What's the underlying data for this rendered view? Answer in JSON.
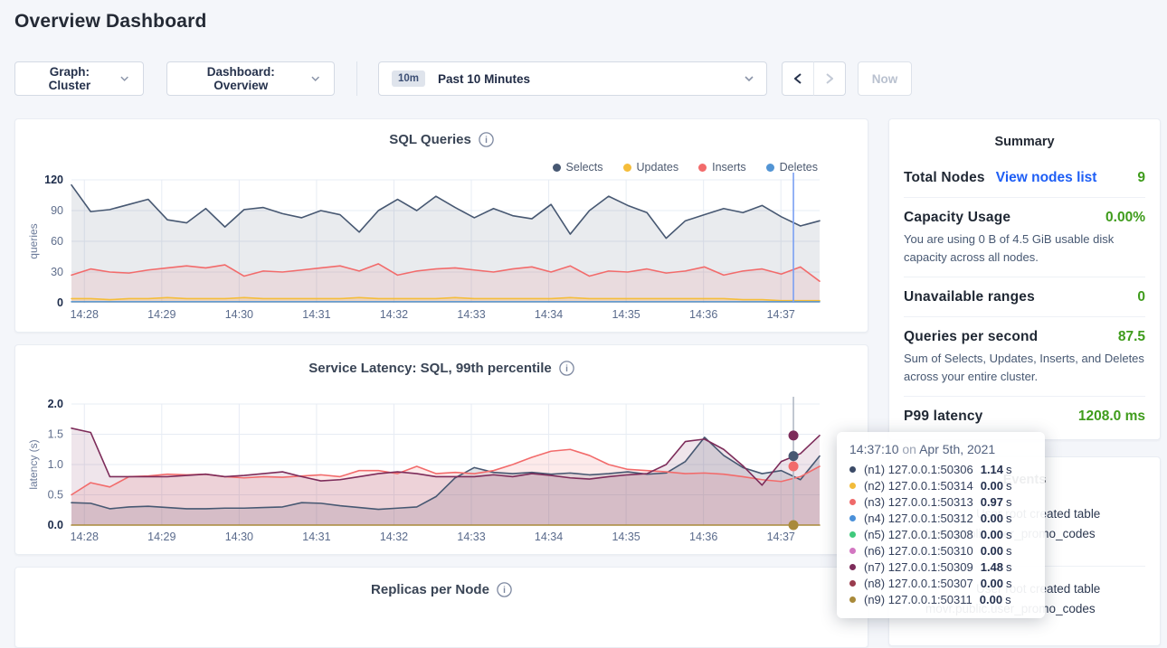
{
  "header": {
    "title": "Overview Dashboard"
  },
  "controls": {
    "graph_label": "Graph: Cluster",
    "dashboard_label": "Dashboard: Overview",
    "time_badge": "10m",
    "time_label": "Past 10 Minutes",
    "now_label": "Now"
  },
  "colors": {
    "accent_green": "#3f9c1c",
    "link_blue": "#1e5ef5",
    "selects_navy": "#475872",
    "updates_yellow": "#f5bd3a",
    "inserts_red": "#f26b6b",
    "deletes_blue": "#5294d4",
    "purple_n7": "#7d2c5a",
    "olive_n9": "#a98a3a"
  },
  "chart_data": [
    {
      "type": "line",
      "title": "SQL Queries",
      "ylabel": "queries",
      "ylim": [
        0,
        120
      ],
      "yticks": [
        {
          "v": 0,
          "label": "0"
        },
        {
          "v": 30,
          "label": "30"
        },
        {
          "v": 60,
          "label": "60"
        },
        {
          "v": 90,
          "label": "90"
        },
        {
          "v": 120,
          "label": "120"
        }
      ],
      "x_ticks": [
        "14:28",
        "14:29",
        "14:30",
        "14:31",
        "14:32",
        "14:33",
        "14:34",
        "14:35",
        "14:36",
        "14:37"
      ],
      "legend_position": "top-right",
      "grid": true,
      "hover": {
        "frac": 0.965,
        "line_color": "#7ba0f2"
      },
      "series": [
        {
          "name": "Selects",
          "color": "#475872",
          "fill": "rgba(71,88,114,0.12)",
          "values": [
            115,
            89,
            91,
            96,
            101,
            81,
            78,
            92,
            74,
            91,
            93,
            87,
            83,
            90,
            86,
            69,
            90,
            101,
            90,
            104,
            93,
            83,
            92,
            85,
            82,
            96,
            67,
            90,
            104,
            95,
            88,
            63,
            80,
            86,
            92,
            88,
            95,
            84,
            75,
            80
          ]
        },
        {
          "name": "Updates",
          "color": "#f5bd3a",
          "fill": "rgba(245,189,58,0.18)",
          "values": [
            4,
            4,
            3,
            4,
            4,
            5,
            4,
            4,
            4,
            5,
            4,
            4,
            4,
            4,
            4,
            5,
            4,
            4,
            4,
            4,
            5,
            4,
            4,
            4,
            4,
            4,
            5,
            4,
            4,
            4,
            4,
            4,
            4,
            4,
            4,
            3,
            3,
            2,
            2,
            2
          ]
        },
        {
          "name": "Inserts",
          "color": "#f26b6b",
          "fill": "rgba(242,107,107,0.12)",
          "values": [
            27,
            33,
            30,
            29,
            32,
            34,
            36,
            34,
            37,
            26,
            31,
            30,
            32,
            34,
            36,
            31,
            38,
            27,
            31,
            33,
            34,
            32,
            30,
            33,
            35,
            30,
            36,
            26,
            31,
            30,
            33,
            29,
            31,
            35,
            27,
            31,
            33,
            28,
            35,
            21
          ]
        },
        {
          "name": "Deletes",
          "color": "#5294d4",
          "fill": "none",
          "values": [
            1,
            1,
            1,
            1,
            1,
            1,
            1,
            1,
            1,
            1,
            1,
            1,
            1,
            1,
            1,
            1,
            1,
            1,
            1,
            1,
            1,
            1,
            1,
            1,
            1,
            1,
            1,
            1,
            1,
            1,
            1,
            1,
            1,
            1,
            1,
            1,
            1,
            1,
            1,
            1
          ]
        }
      ]
    },
    {
      "type": "line",
      "title": "Service Latency: SQL, 99th percentile",
      "ylabel": "latency (s)",
      "ylim": [
        0,
        2
      ],
      "yticks": [
        {
          "v": 0,
          "label": "0.0"
        },
        {
          "v": 0.5,
          "label": "0.5"
        },
        {
          "v": 1,
          "label": "1.0"
        },
        {
          "v": 1.5,
          "label": "1.5"
        },
        {
          "v": 2,
          "label": "2.0"
        }
      ],
      "x_ticks": [
        "14:28",
        "14:29",
        "14:30",
        "14:31",
        "14:32",
        "14:33",
        "14:34",
        "14:35",
        "14:36",
        "14:37"
      ],
      "grid": true,
      "hover": {
        "frac": 0.965,
        "line_color": "#b3bac6",
        "dots": [
          {
            "color": "#475872",
            "v": 1.14
          },
          {
            "color": "#f26b6b",
            "v": 0.97
          },
          {
            "color": "#7d2c5a",
            "v": 1.48
          },
          {
            "color": "#a98a3a",
            "v": 0
          }
        ]
      },
      "series": [
        {
          "name": "(n1) 127.0.0.1:50306",
          "color": "#475872",
          "fill": "rgba(71,88,114,0.16)",
          "values": [
            0.37,
            0.36,
            0.27,
            0.3,
            0.31,
            0.29,
            0.27,
            0.27,
            0.28,
            0.28,
            0.29,
            0.3,
            0.37,
            0.36,
            0.32,
            0.29,
            0.26,
            0.28,
            0.3,
            0.47,
            0.78,
            0.95,
            0.87,
            0.85,
            0.87,
            0.84,
            0.86,
            0.83,
            0.85,
            0.88,
            0.84,
            0.86,
            1.05,
            1.45,
            1.15,
            0.95,
            0.85,
            0.9,
            0.75,
            1.14
          ]
        },
        {
          "name": "(n3) 127.0.0.1:50313",
          "color": "#f26b6b",
          "fill": "rgba(242,107,107,0.14)",
          "values": [
            0.5,
            0.7,
            0.63,
            0.8,
            0.81,
            0.84,
            0.83,
            0.84,
            0.8,
            0.78,
            0.8,
            0.79,
            0.81,
            0.83,
            0.8,
            0.9,
            0.9,
            0.85,
            0.97,
            0.85,
            0.87,
            0.85,
            0.9,
            1.0,
            1.12,
            1.22,
            1.25,
            1.15,
            1.0,
            0.92,
            0.9,
            0.88,
            0.85,
            0.86,
            0.84,
            0.8,
            0.75,
            0.72,
            0.8,
            0.97
          ]
        },
        {
          "name": "(n7) 127.0.0.1:50309",
          "color": "#7d2c5a",
          "fill": "rgba(125,44,90,0.12)",
          "values": [
            1.6,
            1.53,
            0.8,
            0.8,
            0.8,
            0.8,
            0.82,
            0.84,
            0.8,
            0.82,
            0.85,
            0.88,
            0.8,
            0.73,
            0.75,
            0.8,
            0.85,
            0.88,
            0.85,
            0.8,
            0.8,
            0.8,
            0.83,
            0.8,
            0.85,
            0.82,
            0.78,
            0.76,
            0.8,
            0.83,
            0.85,
            1.0,
            1.38,
            1.42,
            1.25,
            0.98,
            0.66,
            1.05,
            1.18,
            1.48
          ]
        },
        {
          "name": "(n9) 127.0.0.1:50311",
          "color": "#a98a3a",
          "fill": "none",
          "values": [
            0,
            0,
            0,
            0,
            0,
            0,
            0,
            0,
            0,
            0,
            0,
            0,
            0,
            0,
            0,
            0,
            0,
            0,
            0,
            0,
            0,
            0,
            0,
            0,
            0,
            0,
            0,
            0,
            0,
            0,
            0,
            0,
            0,
            0,
            0,
            0,
            0,
            0,
            0,
            0
          ]
        }
      ]
    },
    {
      "type": "line",
      "title": "Replicas per Node",
      "series": []
    }
  ],
  "summary": {
    "title": "Summary",
    "rows": [
      {
        "label": "Total Nodes",
        "link": "View nodes list",
        "value": "9"
      },
      {
        "label": "Capacity Usage",
        "value": "0.00%",
        "sub": "You are using 0 B of 4.5 GiB usable disk capacity across all nodes."
      },
      {
        "label": "Unavailable ranges",
        "value": "0"
      },
      {
        "label": "Queries per second",
        "value": "87.5",
        "sub": "Sum of Selects, Updates, Inserts, and Deletes across your entire cluster."
      },
      {
        "label": "P99 latency",
        "value": "1208.0 ms"
      }
    ]
  },
  "events": {
    "title": "Events",
    "items": [
      {
        "line1": "User root created table",
        "line2": "movr.public.user_promo_codes"
      },
      {
        "line1": "User root created table",
        "line2": "movr.public.user_promo_codes"
      }
    ]
  },
  "tooltip": {
    "time": "14:37:10",
    "conjunction": "on",
    "date": "Apr 5th, 2021",
    "rows": [
      {
        "color": "#3b4a67",
        "label": "(n1) 127.0.0.1:50306",
        "value": "1.14",
        "unit": "s"
      },
      {
        "color": "#f2bb3a",
        "label": "(n2) 127.0.0.1:50314",
        "value": "0.00",
        "unit": "s"
      },
      {
        "color": "#ef6a6a",
        "label": "(n3) 127.0.0.1:50313",
        "value": "0.97",
        "unit": "s"
      },
      {
        "color": "#4a90d9",
        "label": "(n4) 127.0.0.1:50312",
        "value": "0.00",
        "unit": "s"
      },
      {
        "color": "#3fc97c",
        "label": "(n5) 127.0.0.1:50308",
        "value": "0.00",
        "unit": "s"
      },
      {
        "color": "#d276c1",
        "label": "(n6) 127.0.0.1:50310",
        "value": "0.00",
        "unit": "s"
      },
      {
        "color": "#7d2c5a",
        "label": "(n7) 127.0.0.1:50309",
        "value": "1.48",
        "unit": "s"
      },
      {
        "color": "#993b4d",
        "label": "(n8) 127.0.0.1:50307",
        "value": "0.00",
        "unit": "s"
      },
      {
        "color": "#a98a3a",
        "label": "(n9) 127.0.0.1:50311",
        "value": "0.00",
        "unit": "s"
      }
    ]
  }
}
